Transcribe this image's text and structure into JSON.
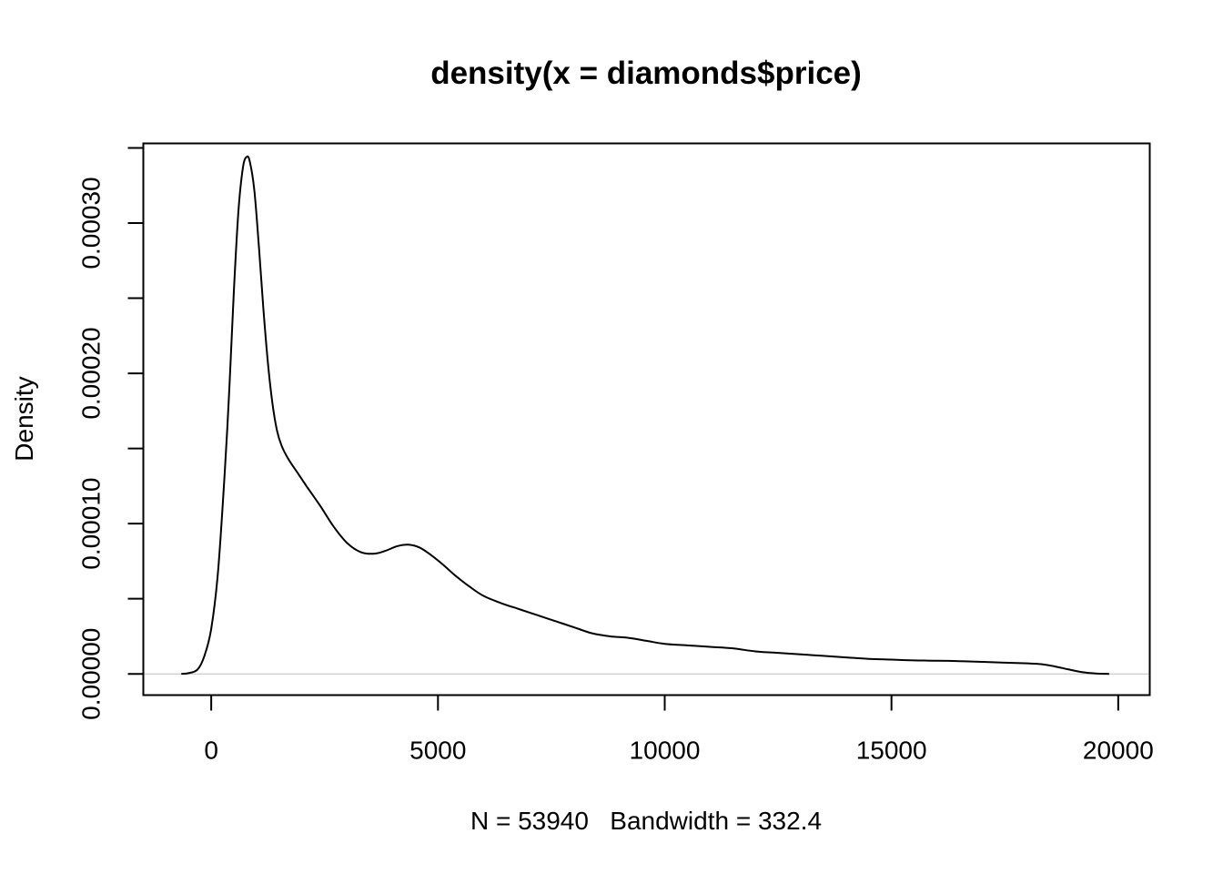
{
  "chart_data": {
    "type": "line",
    "title": "density(x = diamonds$price)",
    "xlabel": "N = 53940   Bandwidth = 332.4",
    "ylabel": "Density",
    "xlim": [
      -1497.2,
      20695.2
    ],
    "ylim": [
      -1.41e-05,
      0.000353
    ],
    "x_ticks": [
      0,
      5000,
      10000,
      15000,
      20000
    ],
    "x_tick_labels": [
      "0",
      "5000",
      "10000",
      "15000",
      "20000"
    ],
    "y_ticks": [
      0,
      5e-05,
      0.0001,
      0.00015,
      0.0002,
      0.00025,
      0.0003,
      0.00035
    ],
    "y_tick_labels": [
      "0.00000",
      "",
      "0.00010",
      "",
      "0.00020",
      "",
      "0.00030",
      ""
    ],
    "zero_line": true,
    "grid": false,
    "series": [
      {
        "x": [
          -660,
          -500,
          -300,
          -150,
          0,
          150,
          300,
          400,
          500,
          600,
          700,
          780,
          850,
          950,
          1050,
          1150,
          1250,
          1350,
          1450,
          1550,
          1700,
          1900,
          2100,
          2400,
          2700,
          3000,
          3300,
          3600,
          3850,
          4100,
          4350,
          4600,
          4850,
          5100,
          5400,
          5700,
          6000,
          6400,
          6800,
          7200,
          7600,
          8000,
          8400,
          8800,
          9200,
          9600,
          10000,
          10500,
          11000,
          11500,
          12000,
          12500,
          13000,
          13500,
          14000,
          14500,
          15000,
          15500,
          16000,
          16500,
          17000,
          17500,
          18000,
          18300,
          18600,
          18900,
          19200,
          19500,
          19800
        ],
        "y": [
          0,
          5e-07,
          3e-06,
          1.2e-05,
          3e-05,
          6.8e-05,
          0.000135,
          0.00019,
          0.000255,
          0.000308,
          0.000337,
          0.000344,
          0.000341,
          0.000322,
          0.000285,
          0.000243,
          0.000207,
          0.00018,
          0.000162,
          0.000152,
          0.000143,
          0.000134,
          0.000125,
          0.000112,
          9.8e-05,
          8.7e-05,
          8.1e-05,
          8e-05,
          8.2e-05,
          8.5e-05,
          8.6e-05,
          8.4e-05,
          7.9e-05,
          7.3e-05,
          6.5e-05,
          5.8e-05,
          5.2e-05,
          4.7e-05,
          4.3e-05,
          3.9e-05,
          3.5e-05,
          3.1e-05,
          2.7e-05,
          2.5e-05,
          2.4e-05,
          2.2e-05,
          2e-05,
          1.9e-05,
          1.8e-05,
          1.7e-05,
          1.5e-05,
          1.4e-05,
          1.3e-05,
          1.2e-05,
          1.1e-05,
          1e-05,
          9.5e-06,
          9e-06,
          8.8e-06,
          8.5e-06,
          8e-06,
          7.5e-06,
          7e-06,
          6.5e-06,
          5e-06,
          3e-06,
          1.2e-06,
          3e-07,
          0
        ]
      }
    ]
  },
  "colors": {
    "line": "#000000",
    "zero_line": "#bebebe",
    "background": "#ffffff"
  }
}
